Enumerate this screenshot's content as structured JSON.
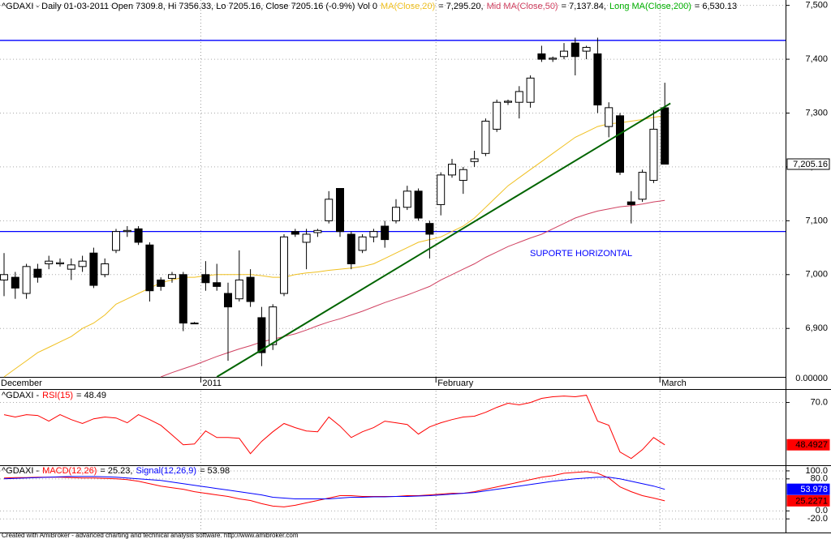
{
  "chart_data": [
    {
      "type": "candlestick",
      "title": "^GDAXI - Daily 01-03-2011 Open 7309.8, Hi 7356.33, Lo 7205.16, Close 7205.16 (-0.9%) Vol 0",
      "categories": [
        "December",
        null,
        null,
        null,
        null,
        null,
        null,
        null,
        null,
        null,
        null,
        null,
        null,
        null,
        null,
        null,
        null,
        null,
        "2011",
        null,
        null,
        null,
        null,
        null,
        null,
        null,
        null,
        null,
        null,
        null,
        null,
        null,
        null,
        null,
        null,
        null,
        null,
        null,
        null,
        "February",
        null,
        null,
        null,
        null,
        null,
        null,
        null,
        null,
        null,
        null,
        null,
        null,
        null,
        null,
        null,
        null,
        null,
        null,
        null,
        "March"
      ],
      "open": [
        6990,
        6995,
        6965,
        7010,
        7020,
        7020,
        7010,
        7015,
        7040,
        7000,
        7045,
        7080,
        7085,
        7055,
        6990,
        6993,
        7000,
        6910,
        7000,
        6985,
        6965,
        6955,
        6995,
        6920,
        6870,
        6965,
        7080,
        7060,
        7078,
        7100,
        7160,
        7075,
        7045,
        7070,
        7090,
        7100,
        7125,
        7155,
        7095,
        7130,
        7185,
        7175,
        7210,
        7225,
        7270,
        7320,
        7320,
        7320,
        7410,
        7400,
        7405,
        7430,
        7415,
        7410,
        7275,
        7295,
        7135,
        7140,
        7175,
        7309.8
      ],
      "high": [
        7040,
        7005,
        7020,
        7020,
        7035,
        7030,
        7030,
        7035,
        7050,
        7030,
        7085,
        7090,
        7090,
        7060,
        6995,
        7005,
        7005,
        6912,
        7025,
        7020,
        6985,
        7045,
        7010,
        6940,
        6945,
        7075,
        7085,
        7085,
        7085,
        7155,
        7160,
        7080,
        7075,
        7085,
        7100,
        7140,
        7165,
        7160,
        7100,
        7190,
        7215,
        7200,
        7230,
        7290,
        7325,
        7325,
        7350,
        7370,
        7425,
        7405,
        7430,
        7440,
        7425,
        7440,
        7320,
        7300,
        7155,
        7195,
        7305,
        7356.33
      ],
      "low": [
        6960,
        6955,
        6955,
        6985,
        7010,
        7015,
        6990,
        7005,
        6975,
        6995,
        7040,
        7070,
        7055,
        6950,
        6970,
        6985,
        6895,
        6908,
        6970,
        6970,
        6840,
        6950,
        6940,
        6830,
        6860,
        6960,
        7070,
        7010,
        7070,
        7095,
        7070,
        7010,
        7040,
        7060,
        7050,
        7095,
        7120,
        7100,
        7030,
        7110,
        7180,
        7150,
        7200,
        7220,
        7265,
        7315,
        7290,
        7310,
        7395,
        7395,
        7400,
        7370,
        7400,
        7300,
        7255,
        7185,
        7095,
        7135,
        7170,
        7205.16
      ],
      "close": [
        7000,
        6975,
        7015,
        6995,
        7025,
        7022,
        7018,
        7025,
        6980,
        7020,
        7080,
        7082,
        7060,
        6970,
        6978,
        7000,
        6910,
        6910,
        6985,
        6978,
        6940,
        6990,
        6950,
        6855,
        6940,
        7070,
        7075,
        7075,
        7082,
        7140,
        7080,
        7020,
        7070,
        7080,
        7065,
        7125,
        7155,
        7105,
        7075,
        7185,
        7205,
        7195,
        7215,
        7285,
        7320,
        7322,
        7340,
        7365,
        7400,
        7402,
        7415,
        7405,
        7422,
        7315,
        7310,
        7190,
        7130,
        7190,
        7270,
        7205.16
      ],
      "series": [
        {
          "name": "MA(Close,20)",
          "color": "#f0c020",
          "legend_value": "= 7,295.20,",
          "values": [
            6810,
            6825,
            6840,
            6855,
            6865,
            6875,
            6885,
            6900,
            6910,
            6925,
            6945,
            6955,
            6965,
            6975,
            6985,
            6990,
            6995,
            6995,
            6998,
            7000,
            7000,
            7000,
            7000,
            6998,
            6995,
            6995,
            7000,
            7003,
            7005,
            7008,
            7010,
            7012,
            7015,
            7020,
            7030,
            7040,
            7050,
            7060,
            7065,
            7070,
            7080,
            7090,
            7105,
            7125,
            7145,
            7165,
            7180,
            7195,
            7210,
            7225,
            7240,
            7255,
            7265,
            7275,
            7280,
            7282,
            7285,
            7288,
            7292,
            7295.2
          ]
        },
        {
          "name": "Mid MA(Close,50)",
          "color": "#d04060",
          "legend_value": "= 7,137.84,",
          "values": [
            null,
            null,
            null,
            null,
            null,
            null,
            null,
            null,
            null,
            null,
            null,
            null,
            null,
            null,
            6810,
            6818,
            6825,
            6832,
            6840,
            6848,
            6855,
            6862,
            6868,
            6875,
            6880,
            6885,
            6890,
            6897,
            6905,
            6912,
            6918,
            6925,
            6932,
            6940,
            6948,
            6955,
            6962,
            6970,
            6978,
            6990,
            7000,
            7010,
            7020,
            7032,
            7042,
            7052,
            7060,
            7068,
            7075,
            7085,
            7095,
            7105,
            7112,
            7118,
            7122,
            7126,
            7128,
            7131,
            7135,
            7137.84
          ]
        }
      ],
      "legend_extra": {
        "name": "Long MA(Close,200)",
        "color": "#00b000",
        "legend_value": "= 6,530.13"
      },
      "ylim": [
        6810,
        7510
      ],
      "yticks": [
        {
          "value": 6900,
          "label": "6,900"
        },
        {
          "value": 7000,
          "label": "7,000"
        },
        {
          "value": 7100,
          "label": "7,100"
        },
        {
          "value": 7200,
          "label": "7,200"
        },
        {
          "value": 7300,
          "label": "7,300"
        },
        {
          "value": 7400,
          "label": "7,400"
        },
        {
          "value": 7500,
          "label": "7,500"
        }
      ],
      "grid": true,
      "hlines": [
        {
          "value": 7435,
          "color": "#0000ff"
        },
        {
          "value": 7080,
          "color": "#0000ff"
        }
      ],
      "trendline": {
        "x": [
          19,
          59.5
        ],
        "values": [
          6810,
          7318
        ],
        "color": "#006400"
      },
      "annotation": {
        "text": "SUPORTE HORIZONTAL",
        "color": "#0000ff"
      },
      "last_label": "7,205.16",
      "volume_label": "0.00000"
    },
    {
      "type": "line",
      "title": "^GDAXI -",
      "series": [
        {
          "name": "RSI(15)",
          "color": "#ff0000",
          "legend_value": "= 48.49",
          "last_label": "48.4927",
          "values": [
            63.8,
            62.6,
            63.8,
            63.4,
            60.5,
            63.8,
            61.3,
            59.3,
            61.7,
            62.6,
            62.1,
            59.7,
            63.8,
            61.3,
            58.4,
            53.5,
            48.5,
            48.9,
            55.5,
            52.2,
            52.2,
            51.8,
            44.0,
            50.2,
            55.1,
            59.3,
            57.2,
            55.5,
            55.1,
            62.6,
            58.0,
            52.2,
            55.1,
            57.2,
            60.5,
            59.7,
            58.8,
            53.9,
            57.6,
            59.7,
            61.3,
            62.6,
            63.0,
            65.0,
            67.5,
            69.6,
            68.8,
            70.0,
            72.1,
            72.9,
            73.3,
            72.9,
            73.7,
            60.5,
            58.4,
            44.8,
            41.5,
            46.0,
            52.2,
            48.4927
          ]
        }
      ],
      "ylim": [
        38.5,
        76
      ],
      "yticks": [
        {
          "value": 70,
          "label": "70.0"
        }
      ],
      "grid": true
    },
    {
      "type": "line",
      "title": "^GDAXI -",
      "series": [
        {
          "name": "MACD(12,26)",
          "color": "#ff0000",
          "legend_value": "= 25.23,",
          "last_label": "25.2271",
          "values": [
            82,
            83,
            83,
            84,
            84,
            84,
            83,
            82,
            82,
            81,
            80,
            78,
            74,
            68,
            62,
            58,
            54,
            48,
            44,
            40,
            36,
            30,
            26,
            18,
            12,
            10,
            14,
            20,
            26,
            32,
            38,
            38,
            36,
            36,
            36,
            36,
            38,
            38,
            40,
            42,
            44,
            44,
            48,
            54,
            60,
            66,
            72,
            78,
            84,
            88,
            94,
            96,
            98,
            94,
            82,
            60,
            48,
            38,
            32,
            25.2271
          ]
        },
        {
          "name": "Signal(12,26,9)",
          "color": "#0000ff",
          "legend_value": "= 53.98",
          "last_label": "53.978",
          "values": [
            80,
            81,
            82,
            83,
            84,
            85,
            86,
            86,
            86,
            85,
            84,
            82,
            80,
            78,
            76,
            72,
            68,
            64,
            60,
            56,
            52,
            48,
            44,
            40,
            34,
            32,
            30,
            30,
            30,
            30,
            32,
            34,
            34,
            35,
            35,
            36,
            36,
            37,
            38,
            40,
            42,
            44,
            46,
            50,
            54,
            58,
            62,
            66,
            70,
            74,
            77,
            80,
            82,
            84,
            84,
            80,
            74,
            68,
            62,
            53.978
          ]
        }
      ],
      "ylim": [
        -50,
        110
      ],
      "yticks": [
        {
          "value": -20,
          "label": "-20.0"
        },
        {
          "value": 0,
          "label": "0.0"
        },
        {
          "value": 80,
          "label": "80.0"
        },
        {
          "value": 100,
          "label": "100.0"
        }
      ],
      "grid": true
    }
  ],
  "footer": "Created with AmiBroker - advanced charting and technical analysis software. http://www.amibroker.com"
}
